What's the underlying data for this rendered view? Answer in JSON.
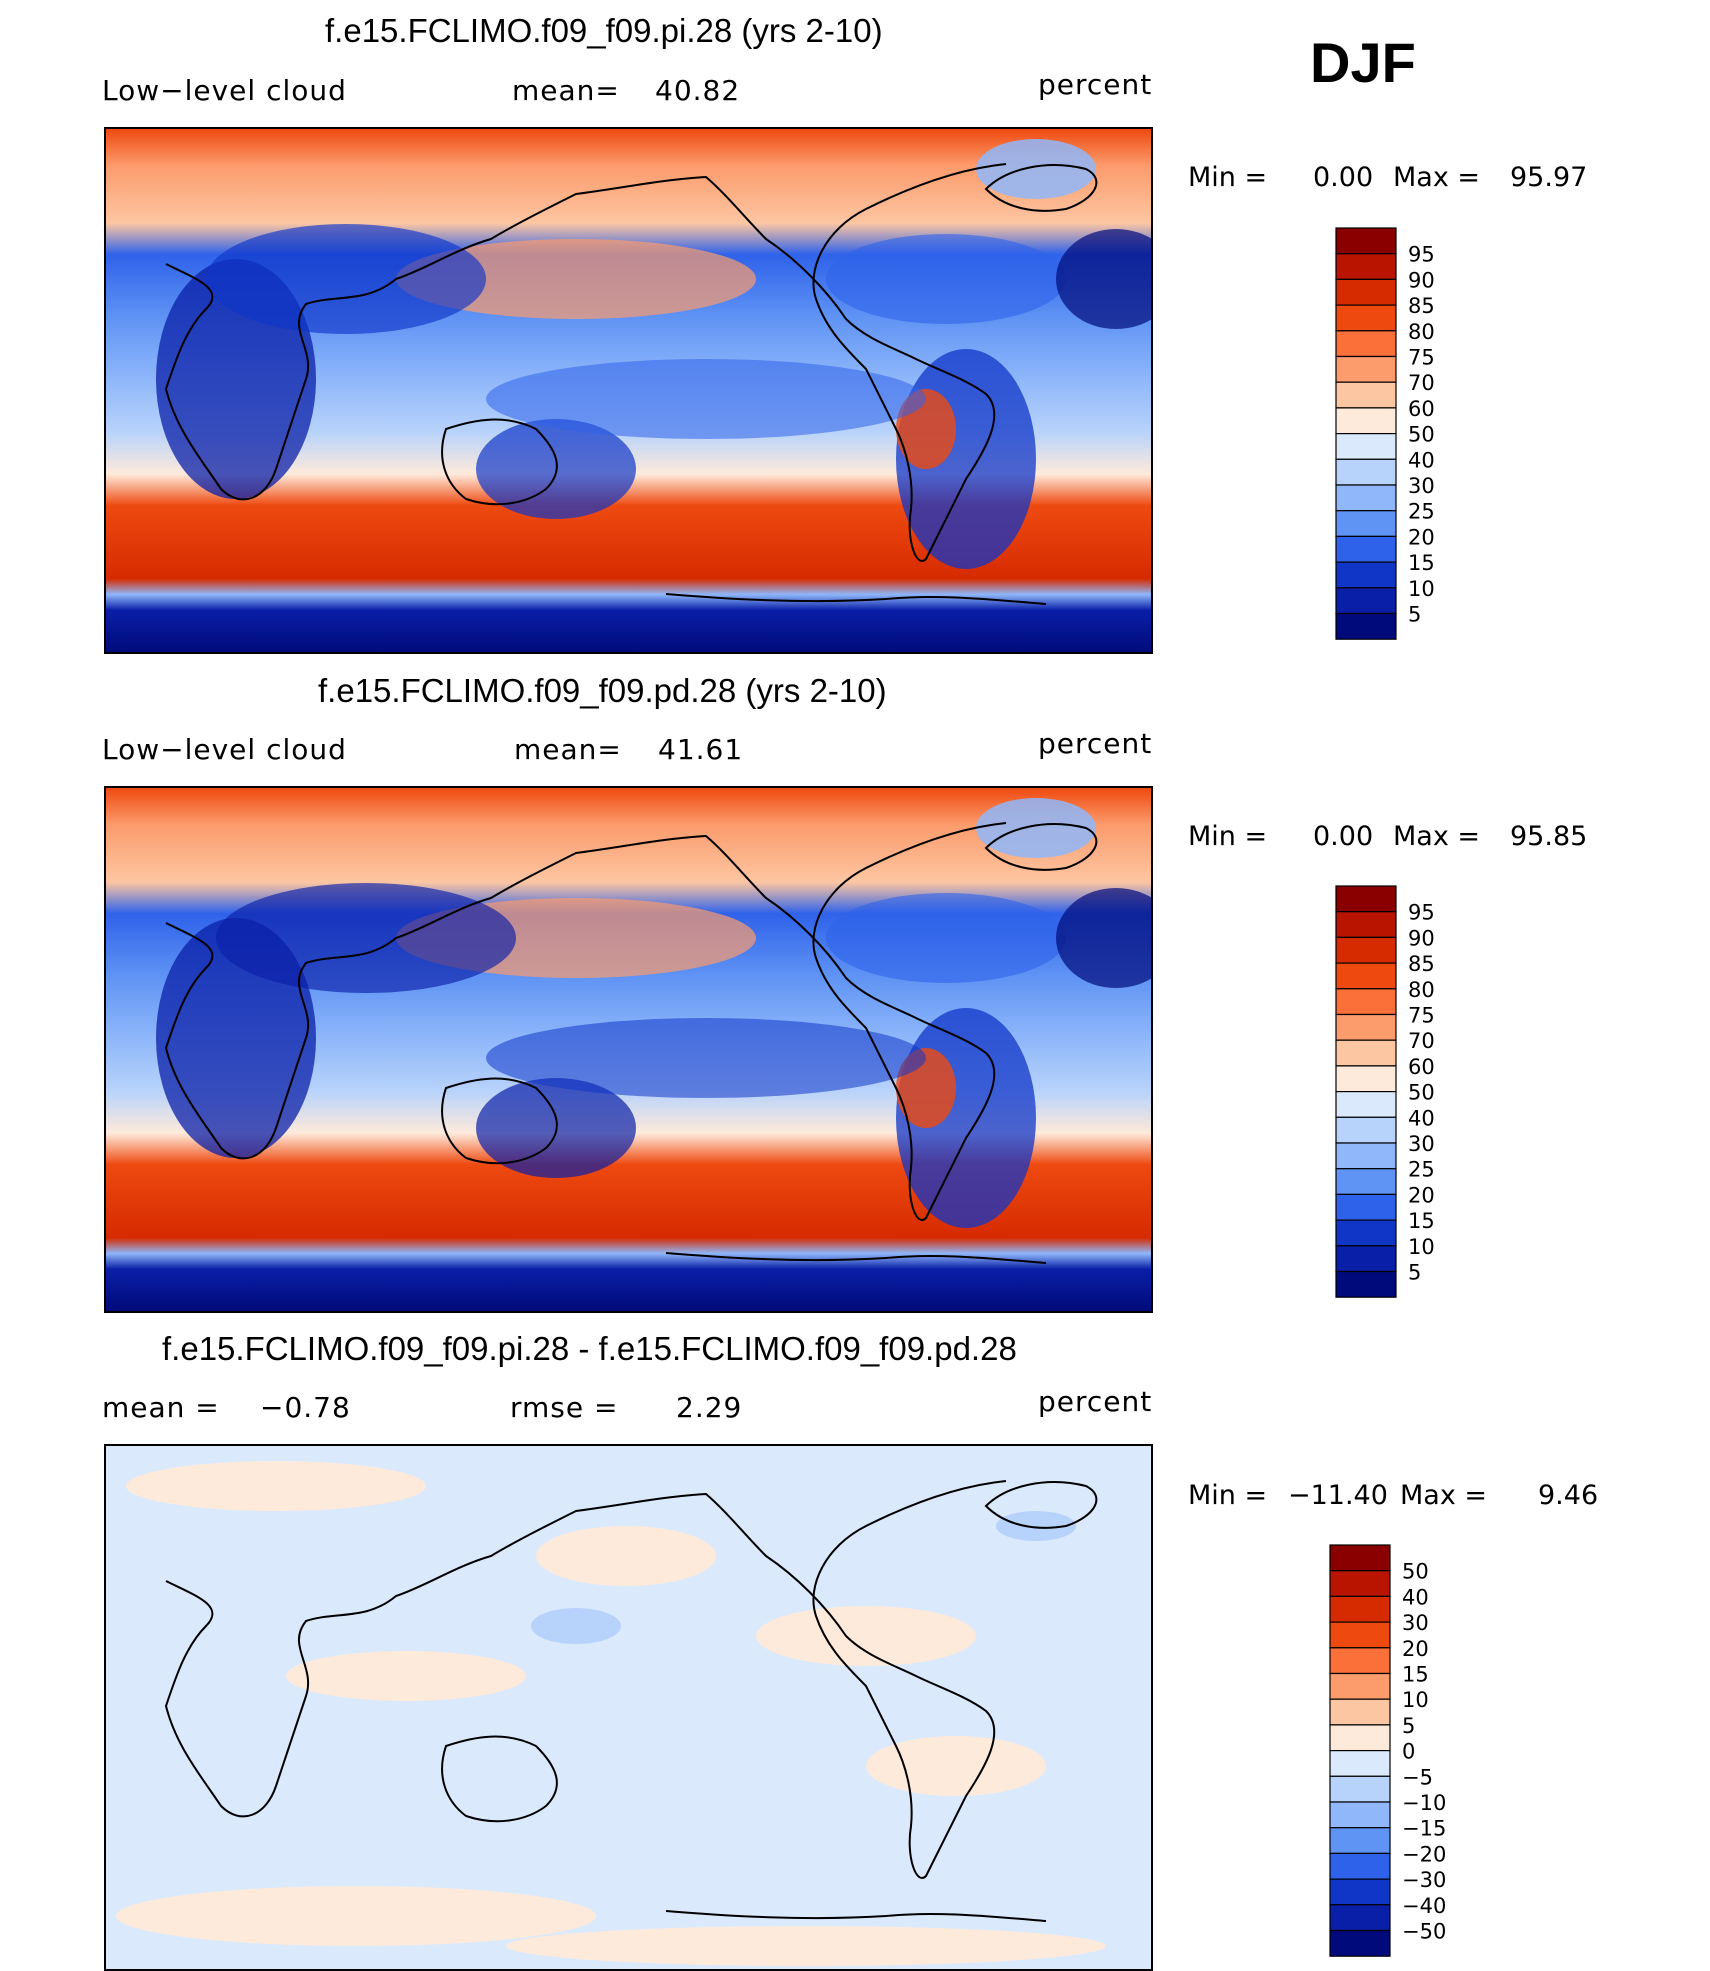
{
  "season": "DJF",
  "panels": [
    {
      "title": "f.e15.FCLIMO.f09_f09.pi.28 (yrs 2-10)",
      "left_label": "Low−level cloud",
      "stat1_label": "mean=",
      "stat1_value": "40.82",
      "units": "percent",
      "min_label": "Min =",
      "min_value": "0.00",
      "max_label": "Max =",
      "max_value": "95.97",
      "colorbar": "abs"
    },
    {
      "title": "f.e15.FCLIMO.f09_f09.pd.28 (yrs 2-10)",
      "left_label": "Low−level cloud",
      "stat1_label": "mean=",
      "stat1_value": "41.61",
      "units": "percent",
      "min_label": "Min =",
      "min_value": "0.00",
      "max_label": "Max =",
      "max_value": "95.85",
      "colorbar": "abs"
    },
    {
      "title": "f.e15.FCLIMO.f09_f09.pi.28 - f.e15.FCLIMO.f09_f09.pd.28",
      "left_label": "mean =",
      "left_value": "−0.78",
      "stat1_label": "rmse =",
      "stat1_value": "2.29",
      "units": "percent",
      "min_label": "Min =",
      "min_value": "−11.40",
      "max_label": "Max =",
      "max_value": "9.46",
      "colorbar": "diff"
    }
  ],
  "chart_data": {
    "type": "heatmap",
    "field": "Low-level cloud",
    "units": "percent",
    "colorbars": {
      "abs": {
        "labels": [
          "95",
          "90",
          "85",
          "80",
          "75",
          "70",
          "60",
          "50",
          "40",
          "30",
          "25",
          "20",
          "15",
          "10",
          "5"
        ],
        "colors": [
          "#8a0000",
          "#b81400",
          "#d62a00",
          "#ee4a10",
          "#fb6f38",
          "#fc9b6c",
          "#fdc6a2",
          "#feeadb",
          "#dbe9fc",
          "#b8d3fb",
          "#8fb7fa",
          "#5f93f4",
          "#2f62ea",
          "#1036c8",
          "#0a1fa8",
          "#000a7a"
        ]
      },
      "diff": {
        "labels": [
          "50",
          "40",
          "30",
          "20",
          "15",
          "10",
          "5",
          "0",
          "−5",
          "−10",
          "−15",
          "−20",
          "−30",
          "−40",
          "−50"
        ],
        "colors": [
          "#8a0000",
          "#b81400",
          "#d62a00",
          "#ee4a10",
          "#fb6f38",
          "#fc9b6c",
          "#fdc6a2",
          "#feeadb",
          "#dbe9fc",
          "#b8d3fb",
          "#8fb7fa",
          "#5f93f4",
          "#2f62ea",
          "#1036c8",
          "#0a1fa8",
          "#000a7a"
        ]
      }
    },
    "lon_range": [
      30,
      390
    ],
    "lat_range": [
      -90,
      90
    ]
  }
}
